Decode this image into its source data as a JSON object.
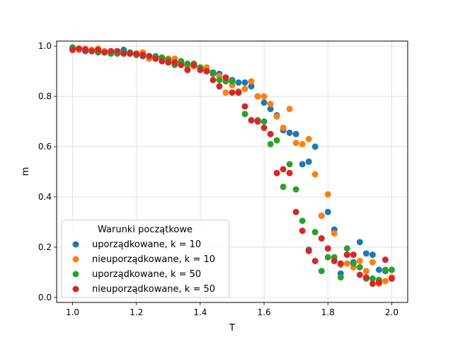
{
  "chart_data": {
    "type": "scatter",
    "xlabel": "T",
    "ylabel": "m",
    "xlim": [
      0.95,
      2.05
    ],
    "ylim": [
      -0.02,
      1.02
    ],
    "x_ticks": [
      1.0,
      1.2,
      1.4,
      1.6,
      1.8,
      2.0
    ],
    "x_tick_labels": [
      "1.0",
      "1.2",
      "1.4",
      "1.6",
      "1.8",
      "2.0"
    ],
    "y_ticks": [
      0.0,
      0.2,
      0.4,
      0.6,
      0.8,
      1.0
    ],
    "y_tick_labels": [
      "0.0",
      "0.2",
      "0.4",
      "0.6",
      "0.8",
      "1.0"
    ],
    "grid": true,
    "legend": {
      "title": "Warunki początkowe",
      "placement": "lower-left"
    },
    "series": [
      {
        "name": "uporządkowane, k = 10",
        "color": "#1f77b4",
        "x": [
          1.0,
          1.02,
          1.04,
          1.06,
          1.08,
          1.1,
          1.12,
          1.14,
          1.16,
          1.18,
          1.2,
          1.22,
          1.24,
          1.26,
          1.28,
          1.3,
          1.32,
          1.34,
          1.36,
          1.38,
          1.4,
          1.42,
          1.44,
          1.46,
          1.48,
          1.5,
          1.52,
          1.54,
          1.56,
          1.58,
          1.6,
          1.62,
          1.64,
          1.66,
          1.68,
          1.7,
          1.72,
          1.74,
          1.76,
          1.78,
          1.8,
          1.82,
          1.84,
          1.86,
          1.88,
          1.9,
          1.92,
          1.94,
          1.96,
          1.98,
          2.0
        ],
        "y": [
          0.99,
          0.99,
          0.98,
          0.985,
          0.98,
          0.98,
          0.978,
          0.975,
          0.985,
          0.97,
          0.965,
          0.96,
          0.955,
          0.955,
          0.95,
          0.945,
          0.935,
          0.93,
          0.925,
          0.92,
          0.915,
          0.905,
          0.895,
          0.89,
          0.875,
          0.865,
          0.855,
          0.855,
          0.84,
          0.8,
          0.775,
          0.75,
          0.725,
          0.665,
          0.655,
          0.65,
          0.53,
          0.54,
          0.6,
          0.325,
          0.34,
          0.27,
          0.095,
          0.17,
          0.14,
          0.22,
          0.175,
          0.17,
          0.11,
          0.105,
          0.11
        ]
      },
      {
        "name": "nieuporządkowane, k = 10",
        "color": "#ff7f0e",
        "x": [
          1.0,
          1.02,
          1.04,
          1.06,
          1.08,
          1.1,
          1.12,
          1.14,
          1.16,
          1.18,
          1.2,
          1.22,
          1.24,
          1.26,
          1.28,
          1.3,
          1.32,
          1.34,
          1.36,
          1.38,
          1.4,
          1.42,
          1.44,
          1.46,
          1.48,
          1.5,
          1.52,
          1.54,
          1.56,
          1.58,
          1.6,
          1.62,
          1.64,
          1.66,
          1.68,
          1.7,
          1.72,
          1.74,
          1.76,
          1.78,
          1.8,
          1.82,
          1.84,
          1.86,
          1.88,
          1.9,
          1.92,
          1.94,
          1.96,
          1.98,
          2.0
        ],
        "y": [
          0.985,
          0.985,
          0.99,
          0.985,
          0.99,
          0.98,
          0.975,
          0.98,
          0.97,
          0.975,
          0.97,
          0.975,
          0.95,
          0.955,
          0.945,
          0.95,
          0.95,
          0.935,
          0.92,
          0.92,
          0.91,
          0.915,
          0.89,
          0.88,
          0.815,
          0.845,
          0.82,
          0.83,
          0.86,
          0.8,
          0.8,
          0.77,
          0.72,
          0.675,
          0.75,
          0.615,
          0.61,
          0.63,
          0.49,
          0.325,
          0.41,
          0.255,
          0.13,
          0.135,
          0.12,
          0.145,
          0.105,
          0.14,
          0.055,
          0.065,
          0.08
        ]
      },
      {
        "name": "uporządkowane, k = 50",
        "color": "#2ca02c",
        "x": [
          1.0,
          1.02,
          1.04,
          1.06,
          1.08,
          1.1,
          1.12,
          1.14,
          1.16,
          1.18,
          1.2,
          1.22,
          1.24,
          1.26,
          1.28,
          1.3,
          1.32,
          1.34,
          1.36,
          1.38,
          1.4,
          1.42,
          1.44,
          1.46,
          1.48,
          1.5,
          1.52,
          1.54,
          1.56,
          1.58,
          1.6,
          1.62,
          1.64,
          1.66,
          1.68,
          1.7,
          1.72,
          1.74,
          1.76,
          1.78,
          1.8,
          1.82,
          1.84,
          1.86,
          1.88,
          1.9,
          1.92,
          1.94,
          1.96,
          1.98,
          2.0
        ],
        "y": [
          0.995,
          0.99,
          0.985,
          0.98,
          0.975,
          0.975,
          0.97,
          0.97,
          0.975,
          0.975,
          0.965,
          0.965,
          0.96,
          0.96,
          0.955,
          0.945,
          0.925,
          0.94,
          0.93,
          0.93,
          0.915,
          0.9,
          0.89,
          0.865,
          0.86,
          0.86,
          0.815,
          0.73,
          0.705,
          0.705,
          0.7,
          0.61,
          0.625,
          0.44,
          0.53,
          0.43,
          0.305,
          0.19,
          0.26,
          0.105,
          0.16,
          0.16,
          0.08,
          0.195,
          0.135,
          0.12,
          0.075,
          0.075,
          0.07,
          0.11,
          0.11
        ]
      },
      {
        "name": "nieuporządkowane, k = 50",
        "color": "#d62728",
        "x": [
          1.0,
          1.02,
          1.04,
          1.06,
          1.08,
          1.1,
          1.12,
          1.14,
          1.16,
          1.18,
          1.2,
          1.22,
          1.24,
          1.26,
          1.28,
          1.3,
          1.32,
          1.34,
          1.36,
          1.38,
          1.4,
          1.42,
          1.44,
          1.46,
          1.48,
          1.5,
          1.52,
          1.54,
          1.56,
          1.58,
          1.6,
          1.62,
          1.64,
          1.66,
          1.68,
          1.7,
          1.72,
          1.74,
          1.76,
          1.78,
          1.8,
          1.82,
          1.84,
          1.86,
          1.88,
          1.9,
          1.92,
          1.94,
          1.96,
          1.98,
          2.0
        ],
        "y": [
          0.985,
          0.99,
          0.985,
          0.98,
          0.985,
          0.975,
          0.98,
          0.98,
          0.97,
          0.97,
          0.97,
          0.965,
          0.96,
          0.95,
          0.94,
          0.935,
          0.935,
          0.925,
          0.905,
          0.925,
          0.905,
          0.9,
          0.865,
          0.84,
          0.875,
          0.815,
          0.815,
          0.76,
          0.705,
          0.7,
          0.675,
          0.65,
          0.495,
          0.51,
          0.495,
          0.34,
          0.265,
          0.185,
          0.145,
          0.235,
          0.195,
          0.145,
          0.135,
          0.17,
          0.17,
          0.09,
          0.08,
          0.055,
          0.06,
          0.15,
          0.075
        ]
      }
    ]
  }
}
